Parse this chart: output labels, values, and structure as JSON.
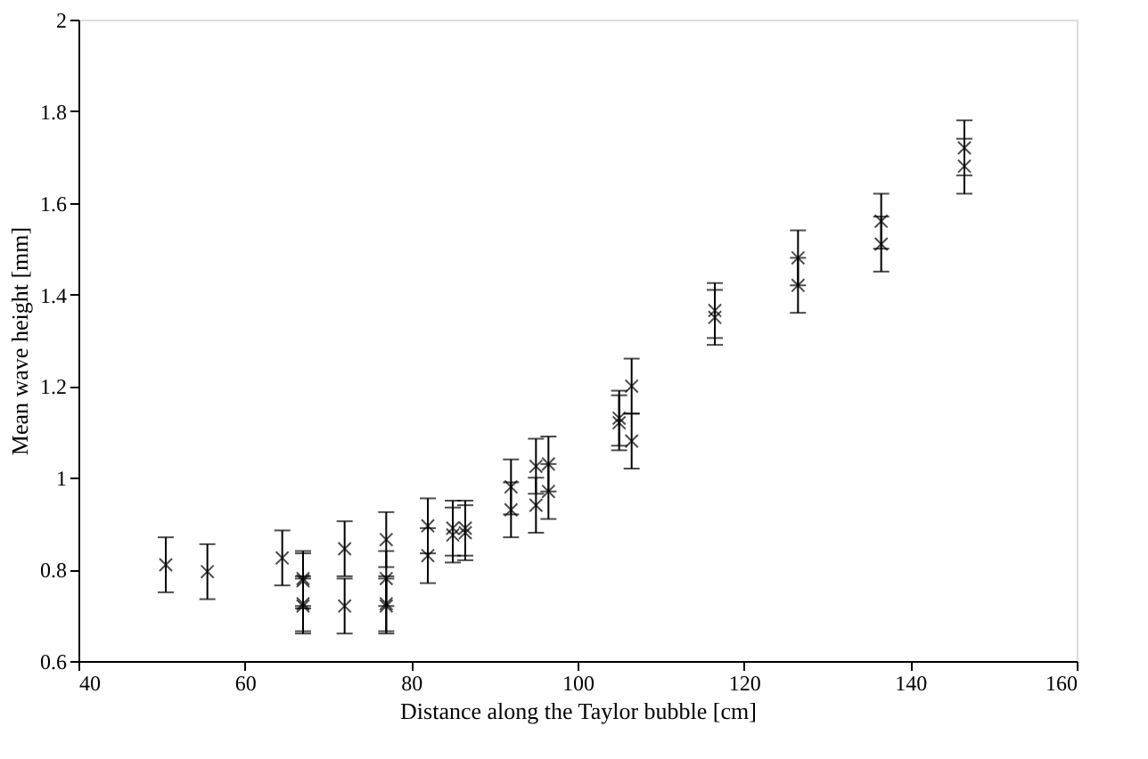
{
  "chart_data": {
    "type": "scatter",
    "xlabel": "Distance along the Taylor bubble [cm]",
    "ylabel": "Mean wave height [mm]",
    "x": [
      50.5,
      55.5,
      64.5,
      67,
      67,
      67,
      67,
      72,
      72,
      77,
      77,
      77,
      77,
      82,
      82,
      85,
      85,
      86.5,
      86.5,
      92,
      92,
      95,
      95,
      96.5,
      96.5,
      105,
      105,
      106.5,
      106.5,
      116.5,
      116.5,
      126.5,
      126.5,
      136.5,
      136.5,
      146.5,
      146.5
    ],
    "series": [
      {
        "color": "#000000",
        "values": [
          0.81,
          0.795,
          0.825,
          0.78,
          0.775,
          0.725,
          0.72,
          0.845,
          0.72,
          0.865,
          0.78,
          0.725,
          0.72,
          0.895,
          0.83,
          0.89,
          0.875,
          0.89,
          0.88,
          0.98,
          0.93,
          1.025,
          0.94,
          1.03,
          0.97,
          1.13,
          1.12,
          1.2,
          1.08,
          1.365,
          1.35,
          1.48,
          1.42,
          1.56,
          1.51,
          1.72,
          1.68
        ],
        "errors": [
          0.06,
          0.06,
          0.06,
          0.06,
          0.06,
          0.06,
          0.06,
          0.06,
          0.06,
          0.06,
          0.06,
          0.06,
          0.06,
          0.06,
          0.06,
          0.06,
          0.06,
          0.06,
          0.06,
          0.06,
          0.06,
          0.06,
          0.06,
          0.06,
          0.06,
          0.06,
          0.06,
          0.06,
          0.06,
          0.06,
          0.06,
          0.06,
          0.06,
          0.06,
          0.06,
          0.06,
          0.06
        ]
      }
    ],
    "xlim": [
      40,
      160
    ],
    "xticks": [
      40,
      60,
      80,
      100,
      120,
      140,
      160
    ],
    "ylim": [
      0.6,
      2
    ],
    "yticks": [
      0.6,
      0.8,
      1,
      1.2,
      1.4,
      1.6,
      1.8,
      2
    ],
    "grid": false,
    "marker": "cross"
  }
}
